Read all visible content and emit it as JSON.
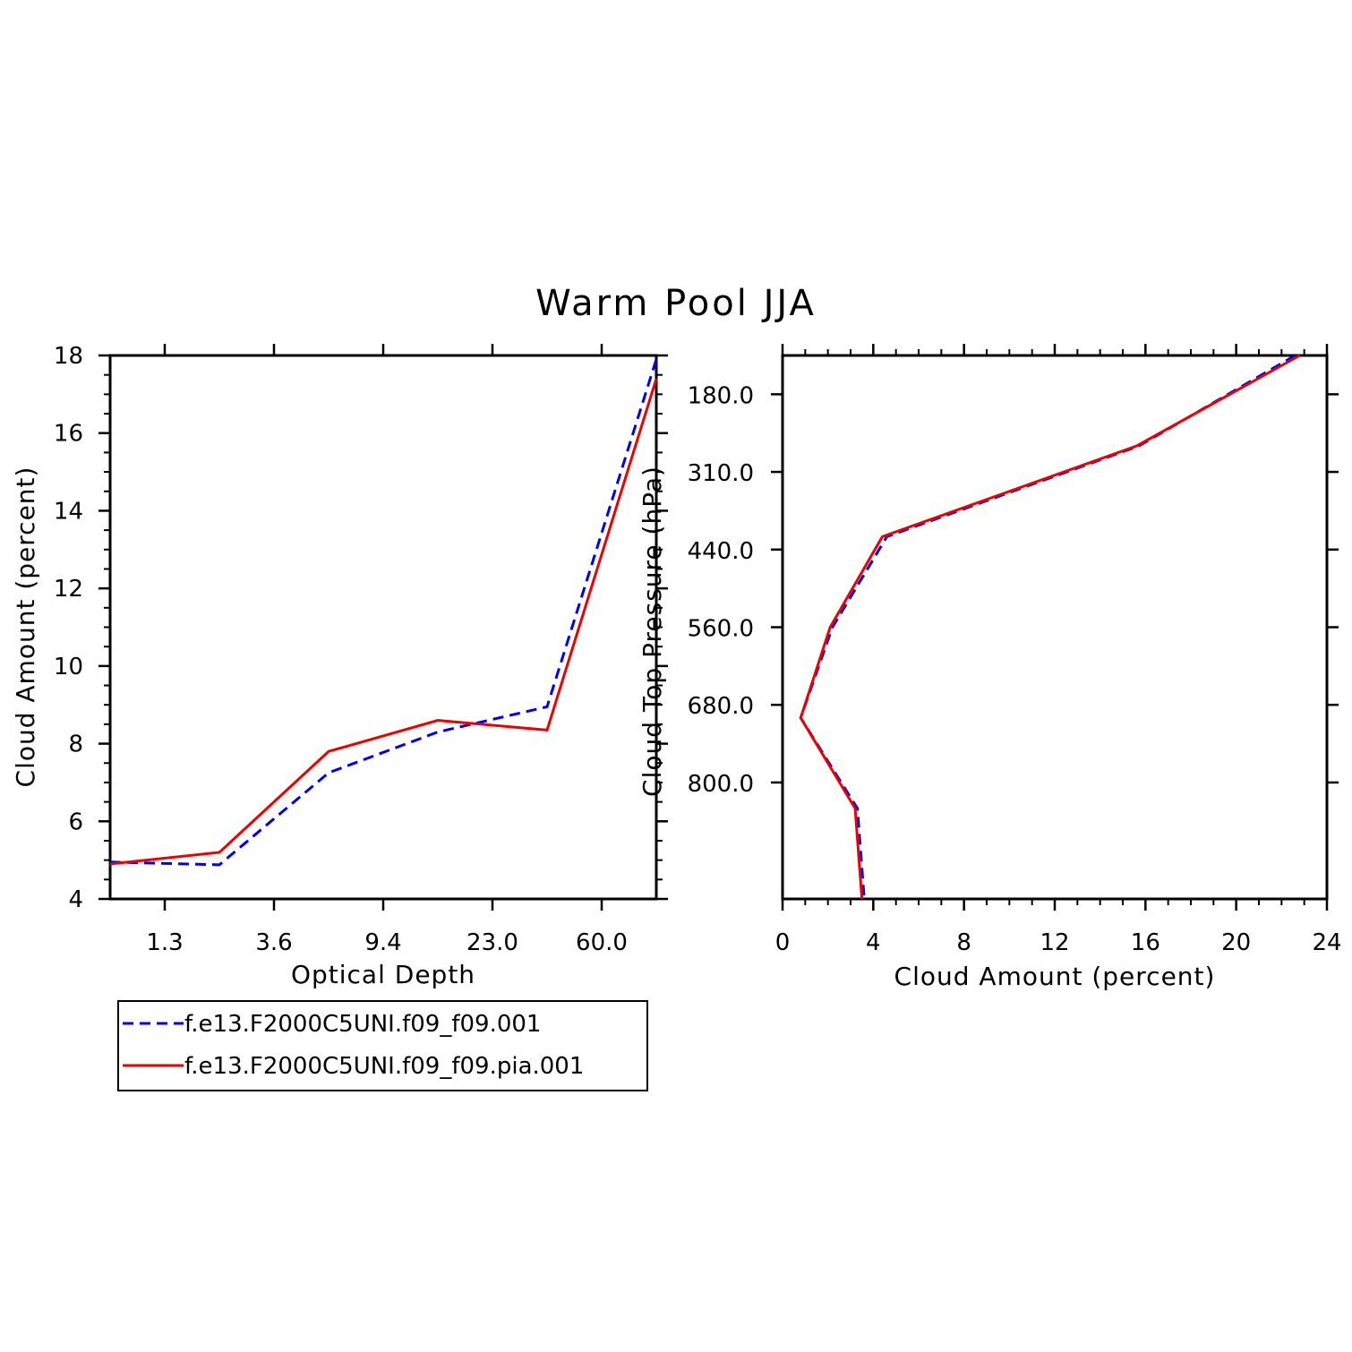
{
  "title": "Warm Pool JJA",
  "colors": {
    "series1": "#0000ee",
    "series2": "#ee0000",
    "axis": "#000000"
  },
  "chart_data": [
    {
      "type": "line",
      "xlabel": "Optical Depth",
      "ylabel": "Cloud Amount (percent)",
      "ylim": [
        4,
        18
      ],
      "yticks": [
        "4",
        "6",
        "8",
        "10",
        "12",
        "14",
        "16",
        "18"
      ],
      "xticks": [
        "1.3",
        "3.6",
        "9.4",
        "23.0",
        "60.0"
      ],
      "x_bins": [
        0.5,
        1.5,
        2.5,
        3.5,
        4.5,
        5.5
      ],
      "series": [
        {
          "name": "f.e13.F2000C5UNI.f09_f09.001",
          "style": "dashed",
          "values": [
            4.95,
            4.88,
            7.25,
            8.3,
            8.95,
            17.9
          ]
        },
        {
          "name": "f.e13.F2000C5UNI.f09_f09.pia.001",
          "style": "solid",
          "values": [
            4.9,
            5.2,
            7.8,
            8.6,
            8.35,
            17.4
          ]
        }
      ],
      "legend": "below"
    },
    {
      "type": "line",
      "xlabel": "Cloud Amount (percent)",
      "ylabel": "Cloud Top Pressure (hPa)",
      "xlim": [
        0,
        24
      ],
      "xticks": [
        "0",
        "4",
        "8",
        "12",
        "16",
        "20",
        "24"
      ],
      "yticks": [
        "180.0",
        "310.0",
        "440.0",
        "560.0",
        "680.0",
        "800.0"
      ],
      "y_inverted": true,
      "y_levels": [
        0.5,
        1.5,
        2.5,
        3.5,
        4.5,
        5.5,
        6.5
      ],
      "series": [
        {
          "name": "f.e13.F2000C5UNI.f09_f09.001",
          "style": "dashed",
          "values": [
            22.6,
            15.7,
            4.6,
            2.2,
            0.8,
            3.3,
            3.6
          ]
        },
        {
          "name": "f.e13.F2000C5UNI.f09_f09.pia.001",
          "style": "solid",
          "values": [
            22.8,
            15.6,
            4.4,
            2.1,
            0.8,
            3.2,
            3.5
          ]
        }
      ]
    }
  ]
}
